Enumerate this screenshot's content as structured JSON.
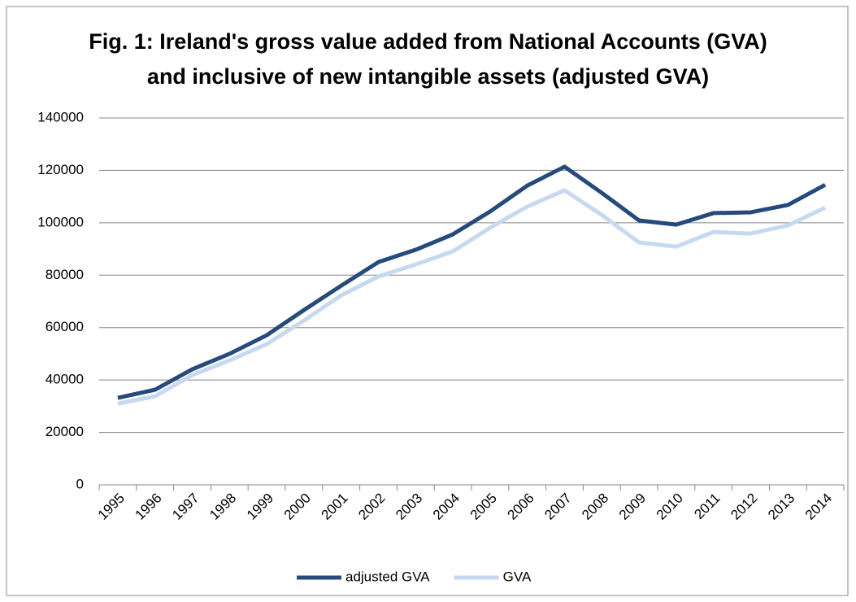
{
  "chart_data": {
    "type": "line",
    "title": "Fig. 1: Ireland's gross value added from National Accounts (GVA) and inclusive of new intangible assets (adjusted GVA)",
    "categories": [
      "1995",
      "1996",
      "1997",
      "1998",
      "1999",
      "2000",
      "2001",
      "2002",
      "2003",
      "2004",
      "2005",
      "2006",
      "2007",
      "2008",
      "2009",
      "2010",
      "2011",
      "2012",
      "2013",
      "2014"
    ],
    "series": [
      {
        "name": "adjusted GVA",
        "color": "#254a7c",
        "values": [
          33200,
          36300,
          44100,
          50000,
          57100,
          66700,
          76000,
          85000,
          89700,
          95600,
          104300,
          114200,
          121400,
          111400,
          100900,
          99300,
          103700,
          104000,
          106800,
          114500
        ]
      },
      {
        "name": "GVA",
        "color": "#c6d9f1",
        "values": [
          31000,
          33800,
          41900,
          47500,
          53700,
          62700,
          72300,
          79500,
          84100,
          89100,
          98100,
          106200,
          112400,
          103000,
          92500,
          90900,
          96500,
          95900,
          99000,
          105800
        ]
      }
    ],
    "ylim": [
      0,
      140000
    ],
    "yticks": [
      0,
      20000,
      40000,
      60000,
      80000,
      100000,
      120000,
      140000
    ],
    "grid": true,
    "legend": "bottom"
  }
}
